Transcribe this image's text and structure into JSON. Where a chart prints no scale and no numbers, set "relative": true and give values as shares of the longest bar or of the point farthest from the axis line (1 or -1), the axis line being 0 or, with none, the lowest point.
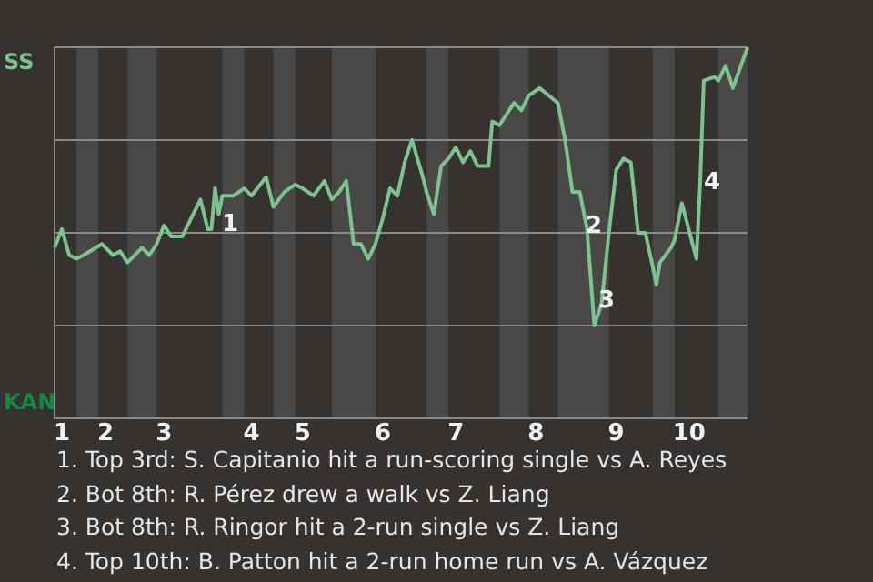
{
  "chart_data": {
    "type": "line",
    "relative": true,
    "categories": [
      null,
      null,
      "1",
      null,
      null,
      null,
      null,
      null,
      null,
      null,
      null,
      null,
      null,
      null,
      "2",
      null,
      null,
      null,
      null,
      null,
      null,
      null,
      null,
      null,
      null,
      null,
      null,
      null,
      null,
      null,
      "3",
      null,
      null,
      null,
      null,
      null,
      null,
      null,
      null,
      null,
      null,
      null,
      null,
      null,
      null,
      null,
      null,
      null,
      null,
      null,
      null,
      null,
      null,
      null,
      "4",
      null,
      null,
      null,
      null,
      null,
      null,
      null,
      null,
      null,
      null,
      null,
      null,
      null,
      "5",
      null,
      null,
      null,
      null,
      null,
      null,
      null,
      null,
      null,
      null,
      null,
      null,
      null,
      null,
      null,
      null,
      null,
      null,
      null,
      null,
      null,
      "6",
      null,
      null,
      null,
      null,
      null,
      null,
      null,
      null,
      null,
      null,
      null,
      null,
      null,
      null,
      null,
      null,
      null,
      null,
      null,
      "7",
      null,
      null,
      null,
      null,
      null,
      null,
      null,
      null,
      null,
      null,
      null,
      null,
      null,
      null,
      null,
      null,
      null,
      null,
      null,
      null,
      null,
      "8",
      null,
      null,
      null,
      null,
      null,
      null,
      null,
      null,
      null,
      null,
      null,
      null,
      null,
      null,
      null,
      null,
      null,
      null,
      null,
      null,
      null,
      "9",
      null,
      null,
      null,
      null,
      null,
      null,
      null,
      null,
      null,
      null,
      null,
      null,
      null,
      null,
      null,
      null,
      null,
      null,
      null,
      "10",
      null,
      null,
      null,
      null,
      null,
      null,
      null,
      null,
      null,
      null,
      null,
      null,
      null,
      null,
      null,
      null
    ],
    "color": "#7cc48e",
    "values": [
      0.46,
      null,
      0.51,
      null,
      0.44,
      null,
      0.43,
      null,
      0.44,
      null,
      null,
      null,
      null,
      0.47,
      null,
      null,
      0.44,
      null,
      0.45,
      null,
      0.42,
      null,
      null,
      null,
      0.46,
      null,
      0.44,
      null,
      0.47,
      null,
      0.52,
      null,
      0.49,
      null,
      null,
      0.49,
      null,
      null,
      0.55,
      null,
      0.59,
      null,
      0.51,
      0.51,
      0.62,
      0.55,
      0.6,
      null,
      null,
      0.6,
      null,
      null,
      0.62,
      null,
      0.6,
      null,
      null,
      null,
      0.65,
      null,
      0.57,
      null,
      null,
      0.61,
      null,
      null,
      0.63,
      null,
      0.62,
      null,
      null,
      0.6,
      null,
      null,
      0.64,
      null,
      0.59,
      null,
      0.61,
      null,
      0.64,
      null,
      0.47,
      null,
      0.47,
      null,
      0.43,
      null,
      0.47,
      null,
      0.54,
      null,
      0.62,
      null,
      0.6,
      null,
      0.69,
      null,
      0.75,
      null,
      null,
      0.65,
      0.61,
      null,
      0.55,
      null,
      0.68,
      null,
      0.7,
      null,
      0.73,
      null,
      0.69,
      null,
      0.72,
      null,
      0.68,
      null,
      null,
      0.68,
      0.8,
      null,
      0.79,
      null,
      0.82,
      null,
      0.85,
      null,
      0.83,
      null,
      0.87,
      null,
      null,
      0.89,
      null,
      null,
      null,
      null,
      0.85,
      null,
      0.75,
      null,
      0.61,
      null,
      0.61,
      null,
      0.51,
      null,
      0.25,
      null,
      0.31,
      null,
      0.5,
      null,
      0.67,
      null,
      0.7,
      null,
      0.69,
      null,
      0.5,
      null,
      0.5,
      null,
      0.41,
      0.36,
      0.42,
      null,
      null,
      0.46,
      0.48,
      null,
      0.58,
      null,
      null,
      null,
      0.43,
      0.63,
      0.91,
      null,
      null,
      0.92,
      0.91,
      null,
      0.95,
      null,
      0.89,
      null,
      null,
      null,
      1.0
    ],
    "grid": "y",
    "marker": "none",
    "line_style": "solid",
    "annotations": [
      "SS",
      "KAN",
      "1",
      "2",
      "3",
      "4",
      "1. Top 3rd: S. Capitanio hit a run-scoring single vs A. Reyes",
      "2. Bot 8th: R. Pérez drew a walk vs Z. Liang",
      "3. Bot 8th: R. Ringor hit a 2-run single vs Z. Liang",
      "4. Top 10th: B. Patton hit a 2-run home run vs A. Vázquez"
    ]
  }
}
